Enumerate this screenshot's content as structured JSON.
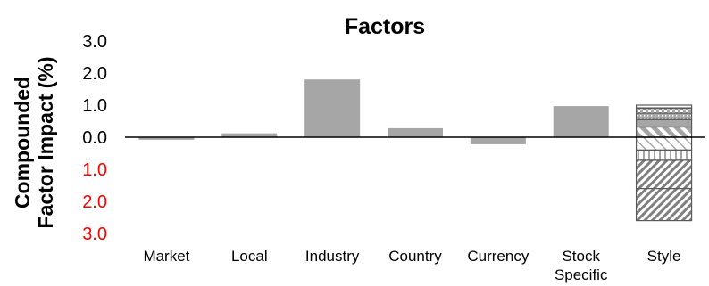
{
  "chart_data": {
    "type": "bar",
    "title": "Factors",
    "ylabel_lines": [
      "Compounded",
      "Factor Impact (%)"
    ],
    "ylabel": "Compounded Factor Impact (%)",
    "xlabel": "",
    "ylim": [
      -3.0,
      3.0
    ],
    "yticks": [
      {
        "value": 3.0,
        "label": "3.0",
        "color": "#000000"
      },
      {
        "value": 2.0,
        "label": "2.0",
        "color": "#000000"
      },
      {
        "value": 1.0,
        "label": "1.0",
        "color": "#000000"
      },
      {
        "value": 0.0,
        "label": "0.0",
        "color": "#000000"
      },
      {
        "value": -1.0,
        "label": "1.0",
        "color": "#ff0000"
      },
      {
        "value": -2.0,
        "label": "2.0",
        "color": "#ff0000"
      },
      {
        "value": -3.0,
        "label": "3.0",
        "color": "#ff0000"
      }
    ],
    "categories": [
      {
        "label": [
          "Market"
        ],
        "value": -0.08
      },
      {
        "label": [
          "Local"
        ],
        "value": 0.12
      },
      {
        "label": [
          "Industry"
        ],
        "value": 1.8
      },
      {
        "label": [
          "Country"
        ],
        "value": 0.28
      },
      {
        "label": [
          "Currency"
        ],
        "value": -0.22
      },
      {
        "label": [
          "Stock",
          "Specific"
        ],
        "value": 0.97
      },
      {
        "label": [
          "Style"
        ],
        "stacked": true,
        "segments": [
          {
            "from": 0.0,
            "to": 0.32,
            "pattern": "diag-thick"
          },
          {
            "from": 0.32,
            "to": 0.55,
            "pattern": "solid"
          },
          {
            "from": 0.55,
            "to": 0.75,
            "pattern": "dotted"
          },
          {
            "from": 0.75,
            "to": 0.9,
            "pattern": "checker"
          },
          {
            "from": 0.9,
            "to": 1.0,
            "pattern": "hlines"
          },
          {
            "from": 0.0,
            "to": -0.4,
            "pattern": "diag-light"
          },
          {
            "from": -0.4,
            "to": -0.72,
            "pattern": "vlines"
          },
          {
            "from": -0.72,
            "to": -1.6,
            "pattern": "diag-dense"
          },
          {
            "from": -1.6,
            "to": -2.6,
            "pattern": "diag-dense"
          }
        ]
      }
    ],
    "colors": {
      "bar": "#a6a6a6",
      "axis": "#000000",
      "negative_tick": "#ff0000"
    },
    "grid": false,
    "legend": "none"
  }
}
